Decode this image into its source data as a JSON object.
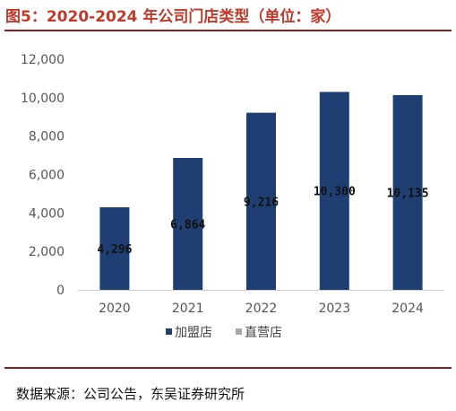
{
  "header": {
    "title": "图5：2020-2024 年公司门店类型（单位：家）"
  },
  "footer": {
    "source": "数据来源：公司公告，东吴证券研究所"
  },
  "chart_data": {
    "type": "bar",
    "title": "图5：2020-2024 年公司门店类型（单位：家）",
    "xlabel": "",
    "ylabel": "",
    "categories": [
      "2020",
      "2021",
      "2022",
      "2023",
      "2024"
    ],
    "ylim": [
      0,
      12000
    ],
    "yticks": [
      0,
      2000,
      4000,
      6000,
      8000,
      10000,
      12000
    ],
    "ytick_labels": [
      "0",
      "2,000",
      "4,000",
      "6,000",
      "8,000",
      "10,000",
      "12,000"
    ],
    "grid": false,
    "legend": "bottom",
    "series": [
      {
        "name": "加盟店",
        "color": "#1f3f73",
        "values": [
          4296,
          6864,
          9216,
          10300,
          10135
        ],
        "labels": [
          "4,296",
          "6,864",
          "9,216",
          "10,300",
          "10,135"
        ]
      },
      {
        "name": "直营店",
        "color": "#a6a6a6",
        "values": [
          0,
          0,
          0,
          0,
          0
        ],
        "labels": [
          "",
          "",
          "",
          "",
          ""
        ]
      }
    ]
  }
}
